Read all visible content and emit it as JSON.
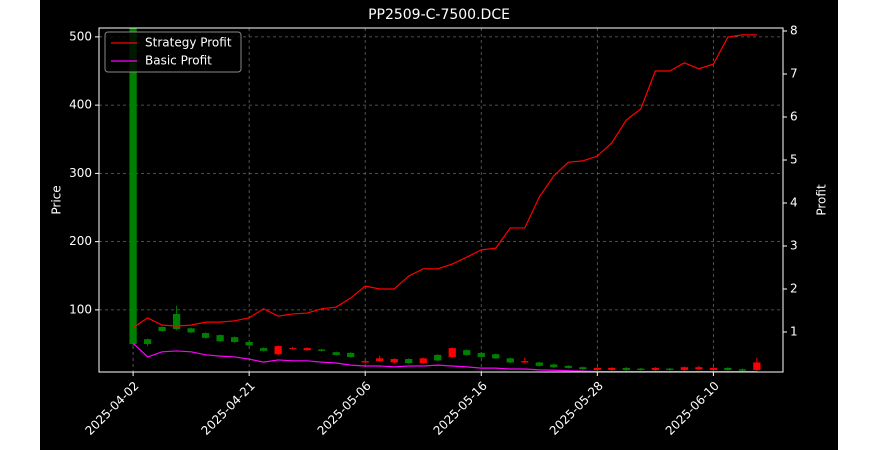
{
  "chart_data": {
    "type": "candlestick",
    "title": "PP2509-C-7500.DCE",
    "ylabel": "Price",
    "y2label": "Profit",
    "categories": [
      "2025-04-02",
      null,
      null,
      null,
      null,
      null,
      null,
      null,
      "2025-04-21",
      null,
      null,
      null,
      null,
      null,
      null,
      null,
      "2025-05-06",
      null,
      null,
      null,
      null,
      null,
      null,
      null,
      "2025-05-16",
      null,
      null,
      null,
      null,
      null,
      null,
      null,
      "2025-05-28",
      null,
      null,
      null,
      null,
      null,
      null,
      null,
      "2025-06-10",
      null,
      null,
      null
    ],
    "open": [
      513,
      57,
      75,
      94,
      73,
      66,
      63,
      60,
      53,
      44,
      35,
      43,
      41,
      42,
      38,
      37,
      23,
      25,
      23,
      28,
      22,
      34,
      31,
      41,
      37,
      35,
      29,
      23,
      23,
      20,
      18,
      16,
      12,
      12,
      15,
      14,
      12,
      14,
      12,
      13,
      12,
      15,
      13,
      12
    ],
    "high": [
      513,
      58,
      76,
      106,
      74,
      67,
      64,
      61,
      54,
      45,
      48,
      46,
      45,
      43,
      39,
      38,
      27,
      33,
      29,
      29,
      30,
      35,
      45,
      42,
      38,
      36,
      30,
      30,
      24,
      21,
      19,
      17,
      16,
      16,
      16,
      15,
      16,
      15,
      17,
      18,
      16,
      16,
      14,
      30
    ],
    "low": [
      45,
      47,
      68,
      70,
      66,
      58,
      53,
      52,
      47,
      39,
      34,
      42,
      40,
      39,
      33,
      30,
      22,
      24,
      22,
      21,
      21,
      25,
      30,
      33,
      30,
      28,
      22,
      22,
      17,
      15,
      14,
      12,
      11,
      11,
      11,
      11,
      11,
      11,
      11,
      12,
      11,
      11,
      10,
      11
    ],
    "close": [
      50,
      50,
      69,
      72,
      67,
      59,
      54,
      53,
      48,
      40,
      47,
      44,
      44,
      40,
      34,
      31,
      25,
      29,
      28,
      22,
      29,
      26,
      44,
      34,
      31,
      29,
      23,
      25,
      18,
      16,
      15,
      13,
      15,
      15,
      12,
      12,
      15,
      12,
      16,
      16,
      15,
      12,
      11,
      23
    ],
    "up_color": "#ff0000",
    "down_color": "#008000",
    "series": [
      {
        "name": "Strategy Profit",
        "color": "#ff0000",
        "axis": "y2",
        "values": [
          1.1,
          1.33,
          1.16,
          1.14,
          1.16,
          1.23,
          1.23,
          1.26,
          1.33,
          1.54,
          1.37,
          1.42,
          1.44,
          1.54,
          1.58,
          1.79,
          2.07,
          2.0,
          2.0,
          2.3,
          2.47,
          2.47,
          2.58,
          2.74,
          2.91,
          2.95,
          3.42,
          3.42,
          4.14,
          4.63,
          4.95,
          4.98,
          5.09,
          5.4,
          5.93,
          6.19,
          7.07,
          7.07,
          7.26,
          7.12,
          7.23,
          7.86,
          7.91,
          7.91
        ]
      },
      {
        "name": "Basic Profit",
        "color": "#ff00ff",
        "axis": "y2",
        "values": [
          0.74,
          0.42,
          0.54,
          0.56,
          0.54,
          0.47,
          0.44,
          0.42,
          0.37,
          0.3,
          0.35,
          0.33,
          0.33,
          0.3,
          0.28,
          0.23,
          0.21,
          0.21,
          0.19,
          0.21,
          0.21,
          0.23,
          0.21,
          0.19,
          0.16,
          0.16,
          0.14,
          0.14,
          0.12,
          0.11,
          0.1,
          0.09,
          0.08,
          0.08,
          0.08,
          0.08,
          0.08,
          0.08,
          0.08,
          0.08,
          0.08,
          0.08,
          0.08,
          0.08
        ]
      }
    ],
    "xlim": [
      -2.35,
      44.8
    ],
    "ylim": [
      9,
      513
    ],
    "yticks": [
      100,
      200,
      300,
      400,
      500
    ],
    "y2lim": [
      0.07,
      8.07
    ],
    "y2ticks": [
      1,
      2,
      3,
      4,
      5,
      6,
      7,
      8
    ],
    "grid": true,
    "legend": "upper left"
  }
}
